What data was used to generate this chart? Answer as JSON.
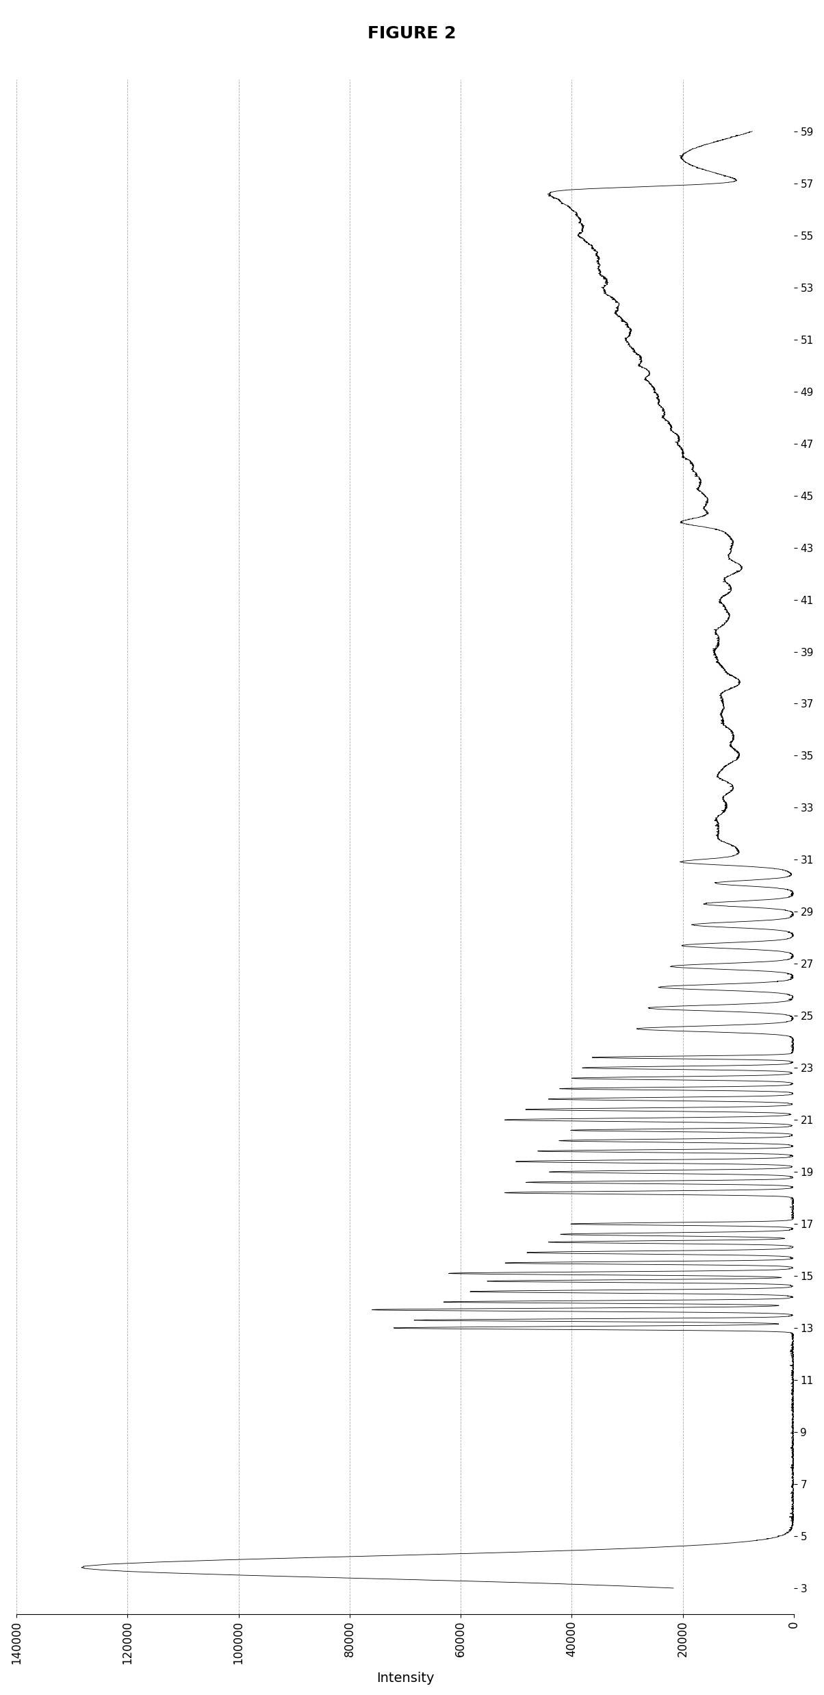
{
  "title": "FIGURE 2",
  "xlabel": "Intensity",
  "ylabel_ticks": [
    3,
    5,
    7,
    9,
    11,
    13,
    15,
    17,
    19,
    21,
    23,
    25,
    27,
    29,
    31,
    33,
    35,
    37,
    39,
    41,
    43,
    45,
    47,
    49,
    51,
    53,
    55,
    57,
    59
  ],
  "xlim": [
    140000,
    0
  ],
  "ylim": [
    2,
    61
  ],
  "xticks": [
    140000,
    120000,
    100000,
    80000,
    60000,
    40000,
    20000,
    0
  ],
  "xtick_labels": [
    "140000",
    "120000",
    "100000",
    "80000",
    "60000",
    "40000",
    "20000",
    "0"
  ],
  "background_color": "#ffffff",
  "line_color": "#000000",
  "title_fontsize": 18,
  "axis_fontsize": 14,
  "grid_color": "#aaaaaa",
  "grid_style": "--"
}
